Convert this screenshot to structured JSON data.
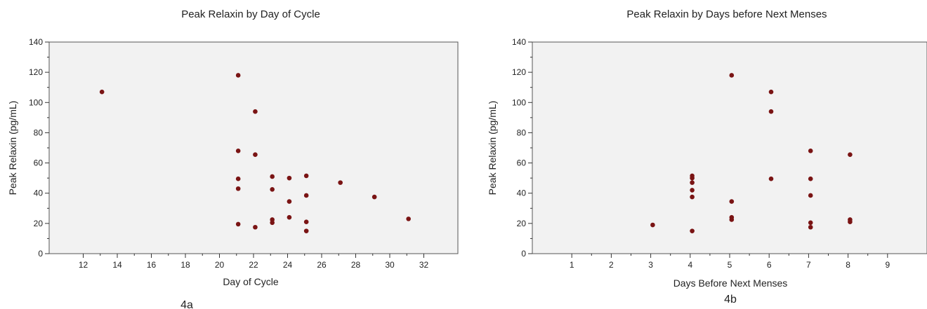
{
  "chart_data": [
    {
      "type": "scatter",
      "title": "Peak Relaxin by Day of Cycle",
      "xlabel": "Day of Cycle",
      "ylabel": "Peak Relaxin (pg/mL)",
      "caption": "4a",
      "xlim": [
        10,
        34
      ],
      "ylim": [
        0,
        140
      ],
      "xticks": [
        12,
        14,
        16,
        18,
        20,
        22,
        24,
        26,
        28,
        30,
        32
      ],
      "yticks": [
        0,
        20,
        40,
        60,
        80,
        100,
        120,
        140
      ],
      "grid": false,
      "points": [
        {
          "x": 13.1,
          "y": 107
        },
        {
          "x": 21.1,
          "y": 118
        },
        {
          "x": 21.1,
          "y": 68
        },
        {
          "x": 21.1,
          "y": 49.5
        },
        {
          "x": 21.1,
          "y": 43
        },
        {
          "x": 21.1,
          "y": 19.5
        },
        {
          "x": 22.1,
          "y": 94
        },
        {
          "x": 22.1,
          "y": 65.5
        },
        {
          "x": 22.1,
          "y": 17.5
        },
        {
          "x": 23.1,
          "y": 51
        },
        {
          "x": 23.1,
          "y": 42.5
        },
        {
          "x": 23.1,
          "y": 22.5
        },
        {
          "x": 23.1,
          "y": 20.5
        },
        {
          "x": 24.1,
          "y": 50
        },
        {
          "x": 24.1,
          "y": 34.5
        },
        {
          "x": 24.1,
          "y": 24
        },
        {
          "x": 25.1,
          "y": 51.5
        },
        {
          "x": 25.1,
          "y": 38.5
        },
        {
          "x": 25.1,
          "y": 21
        },
        {
          "x": 25.1,
          "y": 15
        },
        {
          "x": 27.1,
          "y": 47
        },
        {
          "x": 29.1,
          "y": 37.5
        },
        {
          "x": 31.1,
          "y": 23
        }
      ]
    },
    {
      "type": "scatter",
      "title": "Peak Relaxin by Days before Next Menses",
      "xlabel": "Days Before Next Menses",
      "ylabel": "Peak Relaxin (pg/mL)",
      "caption": "4b",
      "xlim": [
        0,
        10
      ],
      "ylim": [
        0,
        140
      ],
      "xticks": [
        1,
        2,
        3,
        4,
        5,
        6,
        7,
        8,
        9
      ],
      "yticks": [
        0,
        20,
        40,
        60,
        80,
        100,
        120,
        140
      ],
      "grid": false,
      "points": [
        {
          "x": 3.05,
          "y": 19
        },
        {
          "x": 4.05,
          "y": 51.5
        },
        {
          "x": 4.05,
          "y": 50
        },
        {
          "x": 4.05,
          "y": 47
        },
        {
          "x": 4.05,
          "y": 42
        },
        {
          "x": 4.05,
          "y": 37.5
        },
        {
          "x": 4.05,
          "y": 15
        },
        {
          "x": 5.05,
          "y": 118
        },
        {
          "x": 5.05,
          "y": 34.5
        },
        {
          "x": 5.05,
          "y": 24
        },
        {
          "x": 5.05,
          "y": 22.5
        },
        {
          "x": 6.05,
          "y": 107
        },
        {
          "x": 6.05,
          "y": 94
        },
        {
          "x": 6.05,
          "y": 49.5
        },
        {
          "x": 7.05,
          "y": 68
        },
        {
          "x": 7.05,
          "y": 49.5
        },
        {
          "x": 7.05,
          "y": 38.5
        },
        {
          "x": 7.05,
          "y": 20.5
        },
        {
          "x": 7.05,
          "y": 17.5
        },
        {
          "x": 8.05,
          "y": 65.5
        },
        {
          "x": 8.05,
          "y": 22.5
        },
        {
          "x": 8.05,
          "y": 21
        }
      ]
    }
  ],
  "colors": {
    "marker": "#7a1414",
    "plot_background": "#f2f2f2"
  }
}
